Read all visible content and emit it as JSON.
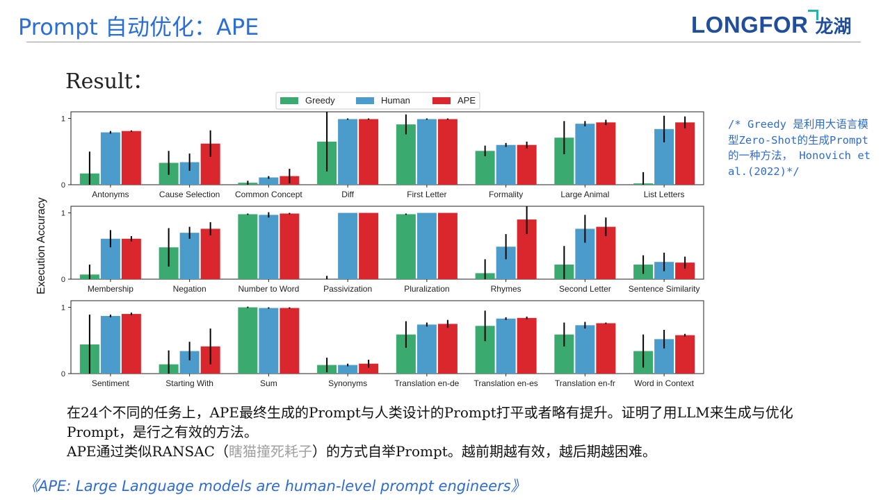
{
  "header": {
    "title": "Prompt 自动优化：APE",
    "logo_text": "LONGFOR",
    "logo_cn": "龙湖"
  },
  "result_label": "Result：",
  "note": "/* Greedy 是利用大语言模型Zero-Shot的生成Prompt的一种方法， Honovich et al.(2022)*/",
  "summary": {
    "line1": "在24个不同的任务上，APE最终生成的Prompt与人类设计的Prompt打平或者略有提升。证明了用LLM来生成与优化Prompt，是行之有效的方法。",
    "line2_pre": "APE通过类似RANSAC（",
    "line2_hl": "瞎猫撞死耗子",
    "line2_post": "）的方式自举Prompt。越前期越有效，越后期越困难。"
  },
  "reference": "《APE: Large Language models are human-level prompt engineers》",
  "colors": {
    "greedy": "#3aaa6e",
    "human": "#4c9ccb",
    "ape": "#d9272d"
  },
  "chart_data": {
    "type": "bar",
    "ylabel": "Execution Accuracy",
    "ylim": [
      0,
      1.1
    ],
    "yticks": [
      0,
      1
    ],
    "legend": {
      "placement": "top-center",
      "entries": [
        "Greedy",
        "Human",
        "APE"
      ]
    },
    "panels": [
      {
        "categories": [
          "Antonyms",
          "Cause Selection",
          "Common Concept",
          "Diff",
          "First Letter",
          "Formality",
          "Large Animal",
          "List Letters"
        ],
        "series": [
          {
            "name": "Greedy",
            "values": [
              0.17,
              0.33,
              0.03,
              0.65,
              0.91,
              0.51,
              0.71,
              0.02
            ],
            "errors": [
              0.33,
              0.18,
              0.03,
              0.45,
              0.15,
              0.08,
              0.25,
              0.17
            ]
          },
          {
            "name": "Human",
            "values": [
              0.79,
              0.34,
              0.11,
              0.99,
              0.99,
              0.6,
              0.92,
              0.84
            ],
            "errors": [
              0.02,
              0.13,
              0.02,
              0.01,
              0.01,
              0.03,
              0.04,
              0.2
            ]
          },
          {
            "name": "APE",
            "values": [
              0.81,
              0.62,
              0.13,
              0.99,
              0.99,
              0.6,
              0.94,
              0.94
            ],
            "errors": [
              0.01,
              0.2,
              0.11,
              0.01,
              0.01,
              0.05,
              0.04,
              0.09
            ]
          }
        ]
      },
      {
        "categories": [
          "Membership",
          "Negation",
          "Number to Word",
          "Passivization",
          "Pluralization",
          "Rhymes",
          "Second Letter",
          "Sentence Similarity"
        ],
        "series": [
          {
            "name": "Greedy",
            "values": [
              0.07,
              0.48,
              0.98,
              0.0,
              0.98,
              0.09,
              0.22,
              0.22
            ],
            "errors": [
              0.15,
              0.29,
              0.01,
              0.05,
              0.01,
              0.21,
              0.28,
              0.14
            ]
          },
          {
            "name": "Human",
            "values": [
              0.61,
              0.7,
              0.97,
              1.0,
              1.0,
              0.49,
              0.76,
              0.26
            ],
            "errors": [
              0.13,
              0.09,
              0.04,
              0.0,
              0.0,
              0.19,
              0.21,
              0.14
            ]
          },
          {
            "name": "APE",
            "values": [
              0.61,
              0.76,
              0.99,
              1.0,
              1.0,
              0.9,
              0.79,
              0.25
            ],
            "errors": [
              0.04,
              0.1,
              0.01,
              0.0,
              0.0,
              0.22,
              0.14,
              0.09
            ]
          }
        ]
      },
      {
        "categories": [
          "Sentiment",
          "Starting With",
          "Sum",
          "Synonyms",
          "Translation en-de",
          "Translation en-es",
          "Translation en-fr",
          "Word in Context"
        ],
        "series": [
          {
            "name": "Greedy",
            "values": [
              0.44,
              0.14,
              1.0,
              0.13,
              0.59,
              0.72,
              0.59,
              0.34
            ],
            "errors": [
              0.45,
              0.21,
              0.01,
              0.11,
              0.2,
              0.23,
              0.18,
              0.25
            ]
          },
          {
            "name": "Human",
            "values": [
              0.87,
              0.34,
              0.99,
              0.13,
              0.74,
              0.83,
              0.73,
              0.52
            ],
            "errors": [
              0.02,
              0.14,
              0.01,
              0.02,
              0.03,
              0.02,
              0.05,
              0.14
            ]
          },
          {
            "name": "APE",
            "values": [
              0.9,
              0.41,
              0.99,
              0.15,
              0.75,
              0.84,
              0.76,
              0.58
            ],
            "errors": [
              0.02,
              0.27,
              0.01,
              0.06,
              0.06,
              0.02,
              0.01,
              0.02
            ]
          }
        ]
      }
    ]
  }
}
